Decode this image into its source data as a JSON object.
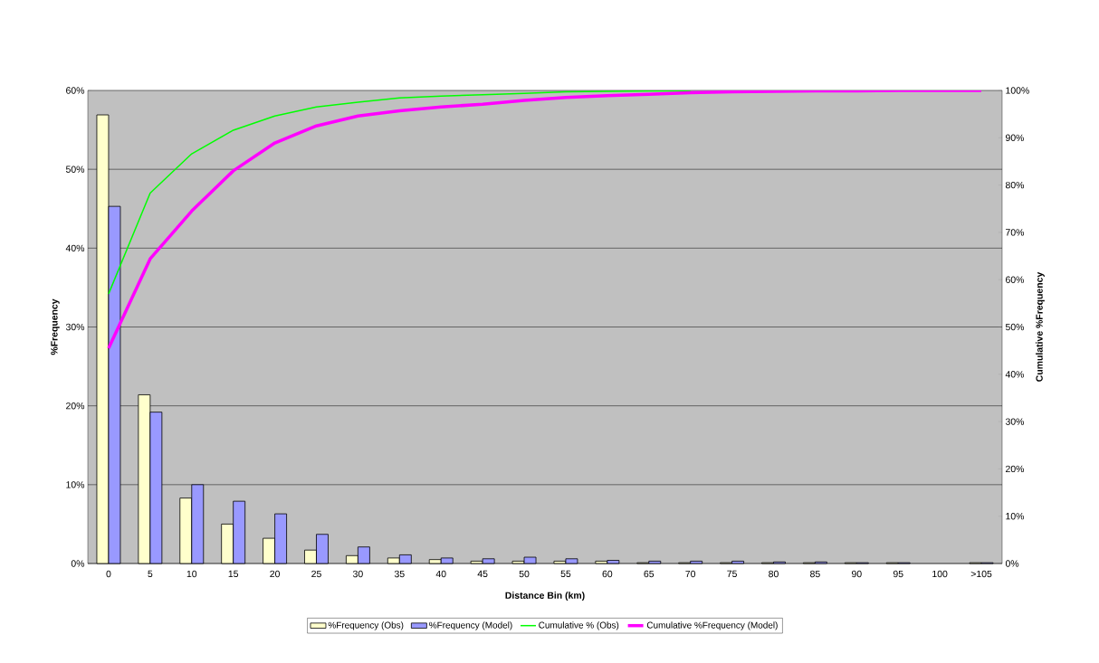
{
  "chart_data": {
    "type": "bar",
    "xlabel": "Distance Bin (km)",
    "ylabel": "%Frequency",
    "y2label": "Cumulative %Frequency",
    "categories": [
      "0",
      "5",
      "10",
      "15",
      "20",
      "25",
      "30",
      "35",
      "40",
      "45",
      "50",
      "55",
      "60",
      "65",
      "70",
      "75",
      "80",
      "85",
      "90",
      "95",
      "100",
      ">105"
    ],
    "series": [
      {
        "name": "%Frequency (Obs)",
        "color": "#ffffcc",
        "values": [
          56.9,
          21.4,
          8.3,
          5.0,
          3.2,
          1.7,
          1.0,
          0.7,
          0.5,
          0.3,
          0.3,
          0.3,
          0.3,
          0.1,
          0.1,
          0.1,
          0.1,
          0.1,
          0.1,
          0.1,
          null,
          0.1
        ]
      },
      {
        "name": "%Frequency (Model)",
        "color": "#9999ff",
        "values": [
          45.3,
          19.2,
          10.0,
          7.9,
          6.3,
          3.7,
          2.1,
          1.1,
          0.7,
          0.6,
          0.8,
          0.6,
          0.4,
          0.3,
          0.3,
          0.3,
          0.2,
          0.2,
          0.1,
          0.1,
          null,
          0.1
        ]
      },
      {
        "name": "Cumulative % (Obs)",
        "type": "line",
        "axis": "y2",
        "color": "#00ff00",
        "values": [
          57.0,
          78.3,
          86.6,
          91.6,
          94.6,
          96.5,
          97.5,
          98.4,
          98.8,
          99.1,
          99.4,
          99.7,
          99.8,
          99.9,
          99.9,
          null,
          null,
          null,
          null,
          null,
          null,
          null
        ]
      },
      {
        "name": "Cumulative %Frequency (Model)",
        "type": "line",
        "axis": "y2",
        "color": "#ff00ff",
        "values": [
          45.5,
          64.4,
          74.5,
          83.0,
          88.9,
          92.5,
          94.6,
          95.7,
          96.5,
          97.1,
          97.9,
          98.5,
          98.9,
          99.2,
          99.5,
          99.7,
          99.8,
          99.9,
          99.9,
          100,
          100,
          100
        ]
      }
    ],
    "ylim": [
      0,
      60
    ],
    "yticks": [
      {
        "value": 0,
        "label": "0%"
      },
      {
        "value": 10,
        "label": "10%"
      },
      {
        "value": 20,
        "label": "20%"
      },
      {
        "value": 30,
        "label": "30%"
      },
      {
        "value": 40,
        "label": "40%"
      },
      {
        "value": 50,
        "label": "50%"
      },
      {
        "value": 60,
        "label": "60%"
      }
    ],
    "y2lim": [
      0,
      100
    ],
    "y2ticks": [
      {
        "value": 0,
        "label": "0%"
      },
      {
        "value": 10,
        "label": "10%"
      },
      {
        "value": 20,
        "label": "20%"
      },
      {
        "value": 30,
        "label": "30%"
      },
      {
        "value": 40,
        "label": "40%"
      },
      {
        "value": 50,
        "label": "50%"
      },
      {
        "value": 60,
        "label": "60%"
      },
      {
        "value": 70,
        "label": "70%"
      },
      {
        "value": 80,
        "label": "80%"
      },
      {
        "value": 90,
        "label": "90%"
      },
      {
        "value": 100,
        "label": "100%"
      }
    ],
    "grid": "y",
    "legend": "bottom",
    "marker": "none"
  }
}
